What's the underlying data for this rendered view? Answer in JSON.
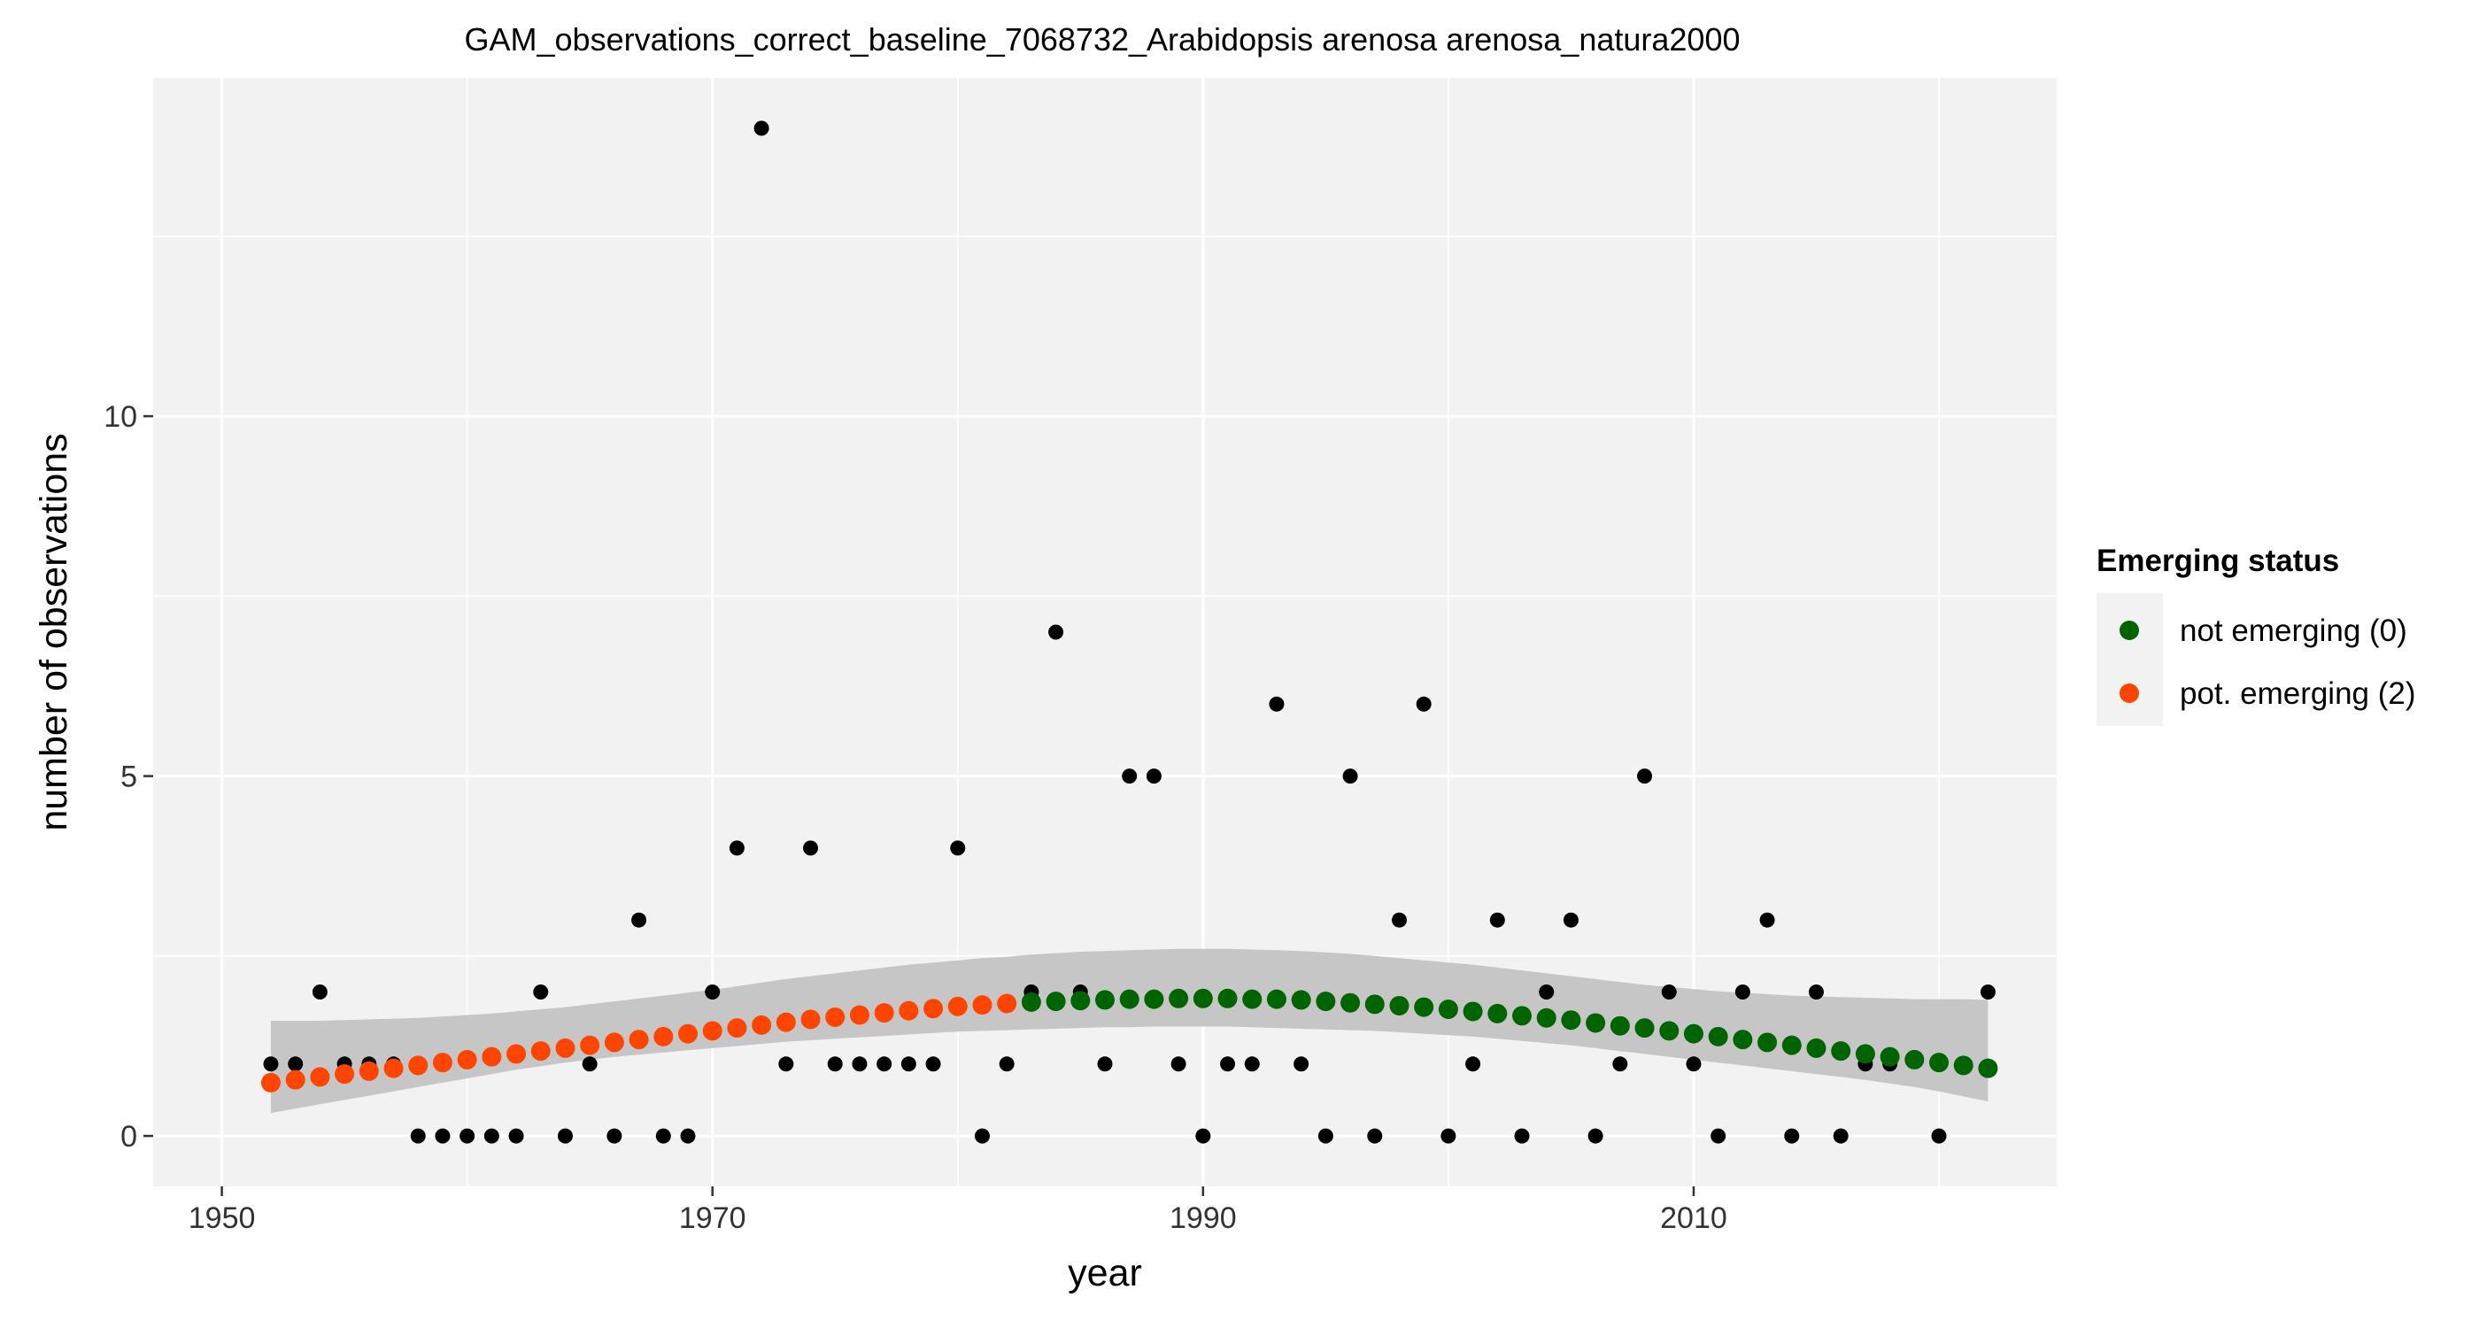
{
  "chart_data": {
    "type": "scatter",
    "title": "GAM_observations_correct_baseline_7068732_Arabidopsis arenosa arenosa_natura2000",
    "xlabel": "year",
    "ylabel": "number of observations",
    "xlim": [
      1947.2,
      2024.8
    ],
    "ylim": [
      -0.7,
      14.7
    ],
    "x_ticks": [
      1950,
      1970,
      1990,
      2010
    ],
    "x_tick_labels": [
      "1950",
      "1970",
      "1990",
      "2010"
    ],
    "y_ticks": [
      0,
      5,
      10
    ],
    "y_tick_labels": [
      "0",
      "5",
      "10"
    ],
    "grid": true,
    "colors": {
      "panel": "#f2f2f2",
      "grid": "#ffffff",
      "observed": "#000000",
      "ribbon": "#c3c3c3",
      "not_emerging": "#006400",
      "pot_emerging": "#ff4500"
    },
    "observed": {
      "x": [
        1952,
        1953,
        1954,
        1955,
        1956,
        1957,
        1958,
        1959,
        1960,
        1961,
        1962,
        1963,
        1964,
        1965,
        1966,
        1967,
        1968,
        1969,
        1970,
        1971,
        1972,
        1973,
        1974,
        1975,
        1976,
        1977,
        1978,
        1979,
        1980,
        1981,
        1982,
        1983,
        1984,
        1985,
        1986,
        1987,
        1988,
        1989,
        1990,
        1991,
        1992,
        1993,
        1994,
        1995,
        1996,
        1997,
        1998,
        1999,
        2000,
        2001,
        2002,
        2003,
        2004,
        2005,
        2006,
        2007,
        2008,
        2009,
        2010,
        2011,
        2012,
        2013,
        2014,
        2015,
        2016,
        2017,
        2018,
        2020,
        2022
      ],
      "y": [
        1,
        1,
        2,
        1,
        1,
        1,
        0,
        0,
        0,
        0,
        0,
        2,
        0,
        1,
        0,
        3,
        0,
        0,
        2,
        4,
        14,
        1,
        4,
        1,
        1,
        1,
        1,
        1,
        4,
        0,
        1,
        2,
        7,
        2,
        1,
        5,
        5,
        1,
        0,
        1,
        1,
        6,
        1,
        0,
        5,
        0,
        3,
        6,
        0,
        1,
        3,
        0,
        2,
        3,
        0,
        1,
        5,
        2,
        1,
        0,
        2,
        3,
        0,
        2,
        0,
        1,
        1,
        0,
        2
      ]
    },
    "fit": {
      "x": [
        1952,
        1953,
        1954,
        1955,
        1956,
        1957,
        1958,
        1959,
        1960,
        1961,
        1962,
        1963,
        1964,
        1965,
        1966,
        1967,
        1968,
        1969,
        1970,
        1971,
        1972,
        1973,
        1974,
        1975,
        1976,
        1977,
        1978,
        1979,
        1980,
        1981,
        1982,
        1983,
        1984,
        1985,
        1986,
        1987,
        1988,
        1989,
        1990,
        1991,
        1992,
        1993,
        1994,
        1995,
        1996,
        1997,
        1998,
        1999,
        2000,
        2001,
        2002,
        2003,
        2004,
        2005,
        2006,
        2007,
        2008,
        2009,
        2010,
        2011,
        2012,
        2013,
        2014,
        2015,
        2016,
        2017,
        2018,
        2019,
        2020,
        2021,
        2022
      ],
      "y": [
        0.74,
        0.78,
        0.82,
        0.86,
        0.9,
        0.94,
        0.98,
        1.02,
        1.06,
        1.1,
        1.14,
        1.18,
        1.22,
        1.26,
        1.3,
        1.34,
        1.38,
        1.42,
        1.46,
        1.5,
        1.54,
        1.58,
        1.62,
        1.65,
        1.68,
        1.71,
        1.74,
        1.77,
        1.8,
        1.82,
        1.84,
        1.86,
        1.87,
        1.88,
        1.89,
        1.9,
        1.9,
        1.91,
        1.91,
        1.91,
        1.9,
        1.9,
        1.89,
        1.87,
        1.85,
        1.83,
        1.81,
        1.79,
        1.76,
        1.73,
        1.7,
        1.67,
        1.64,
        1.61,
        1.57,
        1.53,
        1.5,
        1.46,
        1.42,
        1.38,
        1.34,
        1.3,
        1.26,
        1.22,
        1.18,
        1.14,
        1.1,
        1.06,
        1.02,
        0.98,
        0.94
      ],
      "lower": [
        0.32,
        0.38,
        0.44,
        0.5,
        0.56,
        0.62,
        0.68,
        0.74,
        0.8,
        0.86,
        0.92,
        0.97,
        1.02,
        1.06,
        1.1,
        1.13,
        1.16,
        1.19,
        1.22,
        1.25,
        1.28,
        1.31,
        1.33,
        1.35,
        1.37,
        1.39,
        1.41,
        1.43,
        1.45,
        1.46,
        1.47,
        1.48,
        1.49,
        1.5,
        1.51,
        1.51,
        1.52,
        1.52,
        1.52,
        1.52,
        1.51,
        1.5,
        1.49,
        1.48,
        1.47,
        1.46,
        1.44,
        1.42,
        1.4,
        1.38,
        1.35,
        1.32,
        1.29,
        1.26,
        1.22,
        1.18,
        1.14,
        1.1,
        1.06,
        1.02,
        0.98,
        0.94,
        0.9,
        0.86,
        0.82,
        0.78,
        0.73,
        0.68,
        0.62,
        0.55,
        0.48
      ],
      "upper": [
        1.6,
        1.6,
        1.6,
        1.61,
        1.62,
        1.63,
        1.64,
        1.66,
        1.68,
        1.7,
        1.73,
        1.76,
        1.79,
        1.83,
        1.87,
        1.91,
        1.95,
        1.99,
        2.03,
        2.08,
        2.13,
        2.18,
        2.22,
        2.26,
        2.3,
        2.34,
        2.38,
        2.41,
        2.44,
        2.47,
        2.49,
        2.52,
        2.54,
        2.56,
        2.57,
        2.58,
        2.59,
        2.6,
        2.6,
        2.6,
        2.59,
        2.58,
        2.57,
        2.55,
        2.53,
        2.5,
        2.47,
        2.44,
        2.41,
        2.38,
        2.34,
        2.3,
        2.26,
        2.22,
        2.18,
        2.14,
        2.1,
        2.07,
        2.04,
        2.01,
        1.99,
        1.97,
        1.95,
        1.94,
        1.93,
        1.92,
        1.91,
        1.9,
        1.9,
        1.9,
        1.89
      ],
      "status": [
        "pot_emerging",
        "pot_emerging",
        "pot_emerging",
        "pot_emerging",
        "pot_emerging",
        "pot_emerging",
        "pot_emerging",
        "pot_emerging",
        "pot_emerging",
        "pot_emerging",
        "pot_emerging",
        "pot_emerging",
        "pot_emerging",
        "pot_emerging",
        "pot_emerging",
        "pot_emerging",
        "pot_emerging",
        "pot_emerging",
        "pot_emerging",
        "pot_emerging",
        "pot_emerging",
        "pot_emerging",
        "pot_emerging",
        "pot_emerging",
        "pot_emerging",
        "pot_emerging",
        "pot_emerging",
        "pot_emerging",
        "pot_emerging",
        "pot_emerging",
        "pot_emerging",
        "not_emerging",
        "not_emerging",
        "not_emerging",
        "not_emerging",
        "not_emerging",
        "not_emerging",
        "not_emerging",
        "not_emerging",
        "not_emerging",
        "not_emerging",
        "not_emerging",
        "not_emerging",
        "not_emerging",
        "not_emerging",
        "not_emerging",
        "not_emerging",
        "not_emerging",
        "not_emerging",
        "not_emerging",
        "not_emerging",
        "not_emerging",
        "not_emerging",
        "not_emerging",
        "not_emerging",
        "not_emerging",
        "not_emerging",
        "not_emerging",
        "not_emerging",
        "not_emerging",
        "not_emerging",
        "not_emerging",
        "not_emerging",
        "not_emerging",
        "not_emerging",
        "not_emerging",
        "not_emerging",
        "not_emerging",
        "not_emerging",
        "not_emerging",
        "not_emerging"
      ]
    },
    "legend": {
      "title": "Emerging status",
      "position": "right",
      "entries": [
        {
          "key": "not_emerging",
          "label": "not emerging (0)"
        },
        {
          "key": "pot_emerging",
          "label": "pot. emerging (2)"
        }
      ]
    }
  }
}
